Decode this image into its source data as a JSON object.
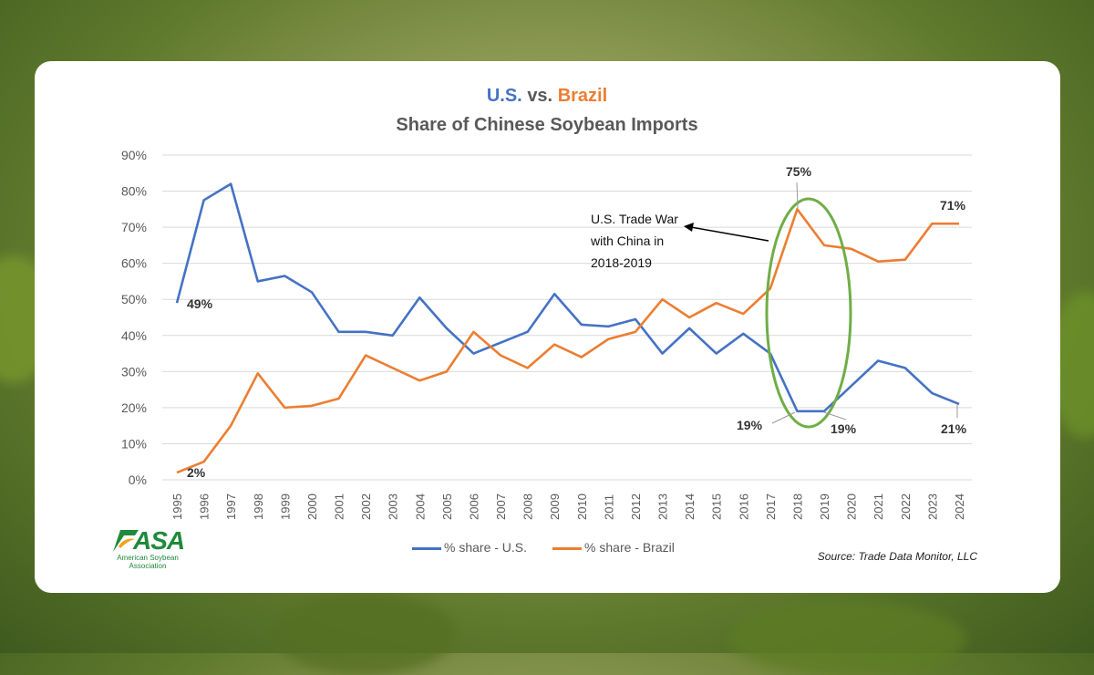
{
  "title": {
    "us": "U.S.",
    "vs": "vs.",
    "brazil": "Brazil",
    "subtitle": "Share of Chinese Soybean Imports"
  },
  "colors": {
    "us": "#4472c4",
    "brazil": "#ed7d31",
    "highlight": "#70ad47"
  },
  "logo": {
    "name": "ASA",
    "sub": "American Soybean Association"
  },
  "source": "Source: Trade Data Monitor, LLC",
  "annotation": {
    "lines": [
      "U.S. Trade War",
      "with China in",
      "2018-2019"
    ]
  },
  "data_labels": {
    "us_1995": "49%",
    "br_1995": "2%",
    "br_2018": "75%",
    "br_2024": "71%",
    "us_2018": "19%",
    "us_2019": "19%",
    "us_2024": "21%"
  },
  "chart_data": {
    "type": "line",
    "title": "U.S. vs. Brazil — Share of Chinese Soybean Imports",
    "xlabel": "",
    "ylabel": "",
    "ylim": [
      0,
      90
    ],
    "yticks": [
      "0%",
      "10%",
      "20%",
      "30%",
      "40%",
      "50%",
      "60%",
      "70%",
      "80%",
      "90%"
    ],
    "grid": true,
    "legend_position": "bottom",
    "categories": [
      "1995",
      "1996",
      "1997",
      "1998",
      "1999",
      "2000",
      "2001",
      "2002",
      "2003",
      "2004",
      "2005",
      "2006",
      "2007",
      "2008",
      "2009",
      "2010",
      "2011",
      "2012",
      "2013",
      "2014",
      "2015",
      "2016",
      "2017",
      "2018",
      "2019",
      "2020",
      "2021",
      "2022",
      "2023",
      "2024"
    ],
    "series": [
      {
        "name": "% share - U.S.",
        "values": [
          49,
          77.5,
          82,
          55,
          56.5,
          52,
          41,
          41,
          40,
          50.5,
          42,
          35,
          38,
          41,
          51.5,
          43,
          42.5,
          44.5,
          35,
          42,
          35,
          40.5,
          35,
          19,
          19,
          26,
          33,
          31,
          24,
          21
        ]
      },
      {
        "name": "% share - Brazil",
        "values": [
          2,
          5,
          15,
          29.5,
          20,
          20.5,
          22.5,
          34.5,
          31,
          27.5,
          30,
          41,
          34.5,
          31,
          37.5,
          34,
          39,
          41,
          50,
          45,
          49,
          46,
          53,
          75,
          65,
          64,
          60.5,
          61,
          71,
          71
        ]
      }
    ]
  }
}
